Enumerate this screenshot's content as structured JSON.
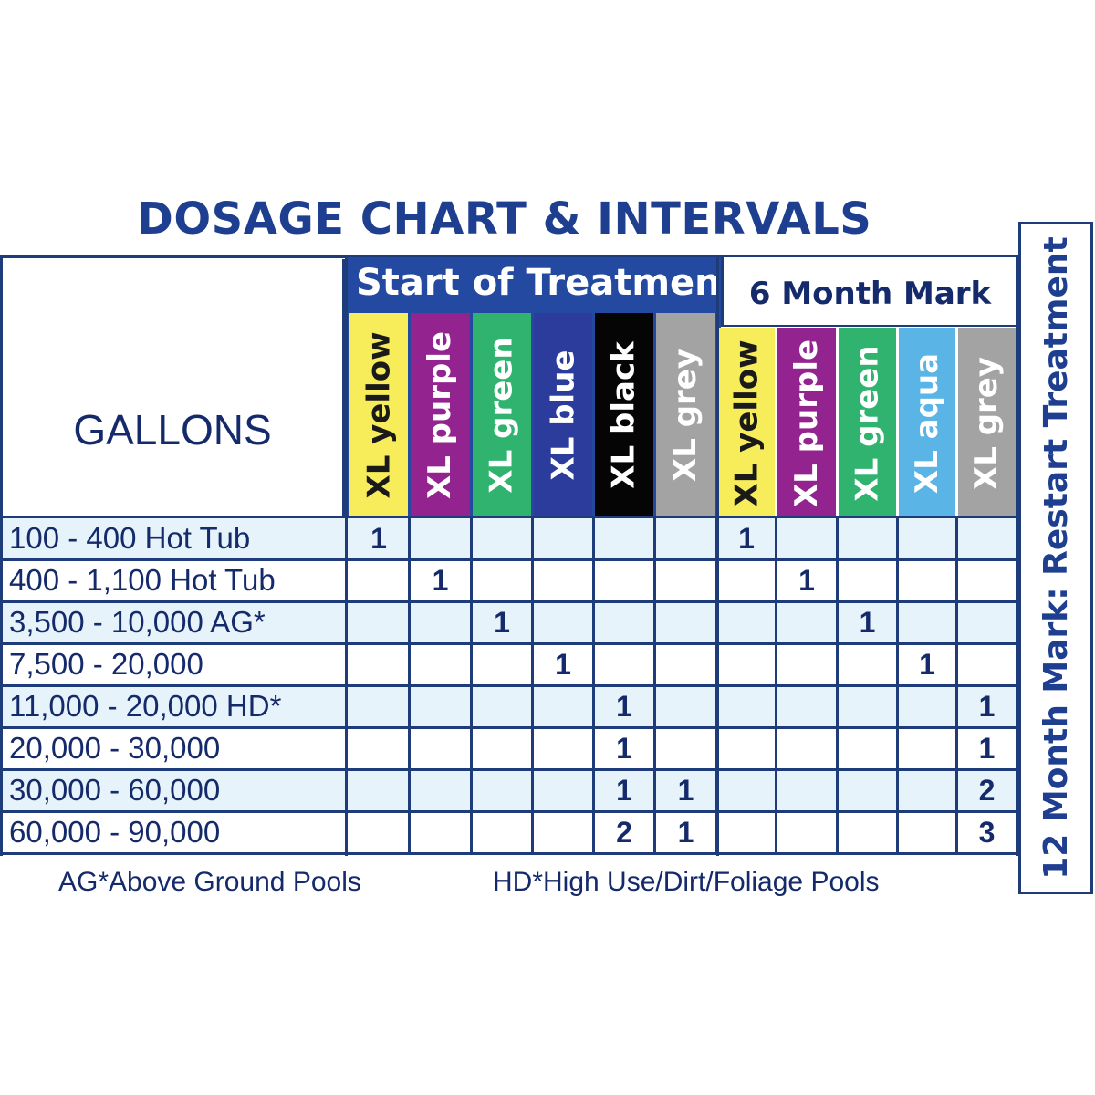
{
  "title": "DOSAGE CHART & INTERVALS",
  "gallons_header": "GALLONS",
  "groups": {
    "start": "Start of Treatmen",
    "six_month": "6 Month Mark",
    "twelve_month": "12 Month Mark: Restart Treatment"
  },
  "columns": [
    {
      "label": "XL yellow",
      "group": "start",
      "bg": "#f7ec5a",
      "fg": "#1a1a1a"
    },
    {
      "label": "XL purple",
      "group": "start",
      "bg": "#93248f",
      "fg": "#ffffff"
    },
    {
      "label": "XL green",
      "group": "start",
      "bg": "#2fb36f",
      "fg": "#ffffff"
    },
    {
      "label": "XL blue",
      "group": "start",
      "bg": "#2b3c9c",
      "fg": "#ffffff"
    },
    {
      "label": "XL black",
      "group": "start",
      "bg": "#050505",
      "fg": "#ffffff"
    },
    {
      "label": "XL grey",
      "group": "start",
      "bg": "#a3a3a3",
      "fg": "#ffffff"
    },
    {
      "label": "XL yellow",
      "group": "six_month",
      "bg": "#f7ec5a",
      "fg": "#1a1a1a"
    },
    {
      "label": "XL purple",
      "group": "six_month",
      "bg": "#93248f",
      "fg": "#ffffff"
    },
    {
      "label": "XL green",
      "group": "six_month",
      "bg": "#2fb36f",
      "fg": "#ffffff"
    },
    {
      "label": "XL aqua",
      "group": "six_month",
      "bg": "#5ab4e5",
      "fg": "#ffffff"
    },
    {
      "label": "XL grey",
      "group": "six_month",
      "bg": "#a3a3a3",
      "fg": "#ffffff"
    }
  ],
  "rows": [
    {
      "gallons": "100 - 400 Hot Tub",
      "values": [
        "1",
        "",
        "",
        "",
        "",
        "",
        "1",
        "",
        "",
        "",
        ""
      ]
    },
    {
      "gallons": "400 - 1,100 Hot Tub",
      "values": [
        "",
        "1",
        "",
        "",
        "",
        "",
        "",
        "1",
        "",
        "",
        ""
      ]
    },
    {
      "gallons": "3,500 - 10,000 AG*",
      "values": [
        "",
        "",
        "1",
        "",
        "",
        "",
        "",
        "",
        "1",
        "",
        ""
      ]
    },
    {
      "gallons": "7,500 - 20,000",
      "values": [
        "",
        "",
        "",
        "1",
        "",
        "",
        "",
        "",
        "",
        "1",
        ""
      ]
    },
    {
      "gallons": "11,000 - 20,000 HD*",
      "values": [
        "",
        "",
        "",
        "",
        "1",
        "",
        "",
        "",
        "",
        "",
        "1"
      ]
    },
    {
      "gallons": "20,000 - 30,000",
      "values": [
        "",
        "",
        "",
        "",
        "1",
        "",
        "",
        "",
        "",
        "",
        "1"
      ]
    },
    {
      "gallons": "30,000 - 60,000",
      "values": [
        "",
        "",
        "",
        "",
        "1",
        "1",
        "",
        "",
        "",
        "",
        "2"
      ]
    },
    {
      "gallons": "60,000 - 90,000",
      "values": [
        "",
        "",
        "",
        "",
        "2",
        "1",
        "",
        "",
        "",
        "",
        "3"
      ]
    }
  ],
  "footnotes": {
    "ag": "AG*Above Ground Pools",
    "hd": "HD*High Use/Dirt/Foliage Pools"
  },
  "colors": {
    "navy": "#1e3b7a",
    "header_blue": "#2449a0",
    "row_tint": "#e6f3fb"
  },
  "chart_data": {
    "type": "table",
    "title": "DOSAGE CHART & INTERVALS",
    "row_header": "GALLONS",
    "column_groups": [
      {
        "name": "Start of Treatment",
        "columns": [
          "XL yellow",
          "XL purple",
          "XL green",
          "XL blue",
          "XL black",
          "XL grey"
        ]
      },
      {
        "name": "6 Month Mark",
        "columns": [
          "XL yellow",
          "XL purple",
          "XL green",
          "XL aqua",
          "XL grey"
        ]
      },
      {
        "name": "12 Month Mark: Restart Treatment",
        "columns": []
      }
    ],
    "rows": [
      {
        "gallons": "100 - 400 Hot Tub",
        "start": {
          "XL yellow": 1
        },
        "six_month": {
          "XL yellow": 1
        }
      },
      {
        "gallons": "400 - 1,100 Hot Tub",
        "start": {
          "XL purple": 1
        },
        "six_month": {
          "XL purple": 1
        }
      },
      {
        "gallons": "3,500 - 10,000 AG*",
        "start": {
          "XL green": 1
        },
        "six_month": {
          "XL green": 1
        }
      },
      {
        "gallons": "7,500 - 20,000",
        "start": {
          "XL blue": 1
        },
        "six_month": {
          "XL aqua": 1
        }
      },
      {
        "gallons": "11,000 - 20,000 HD*",
        "start": {
          "XL black": 1
        },
        "six_month": {
          "XL grey": 1
        }
      },
      {
        "gallons": "20,000 - 30,000",
        "start": {
          "XL black": 1
        },
        "six_month": {
          "XL grey": 1
        }
      },
      {
        "gallons": "30,000 - 60,000",
        "start": {
          "XL black": 1,
          "XL grey": 1
        },
        "six_month": {
          "XL grey": 2
        }
      },
      {
        "gallons": "60,000 - 90,000",
        "start": {
          "XL black": 2,
          "XL grey": 1
        },
        "six_month": {
          "XL grey": 3
        }
      }
    ],
    "annotations": [
      "AG*Above Ground Pools",
      "HD*High Use/Dirt/Foliage Pools"
    ]
  }
}
